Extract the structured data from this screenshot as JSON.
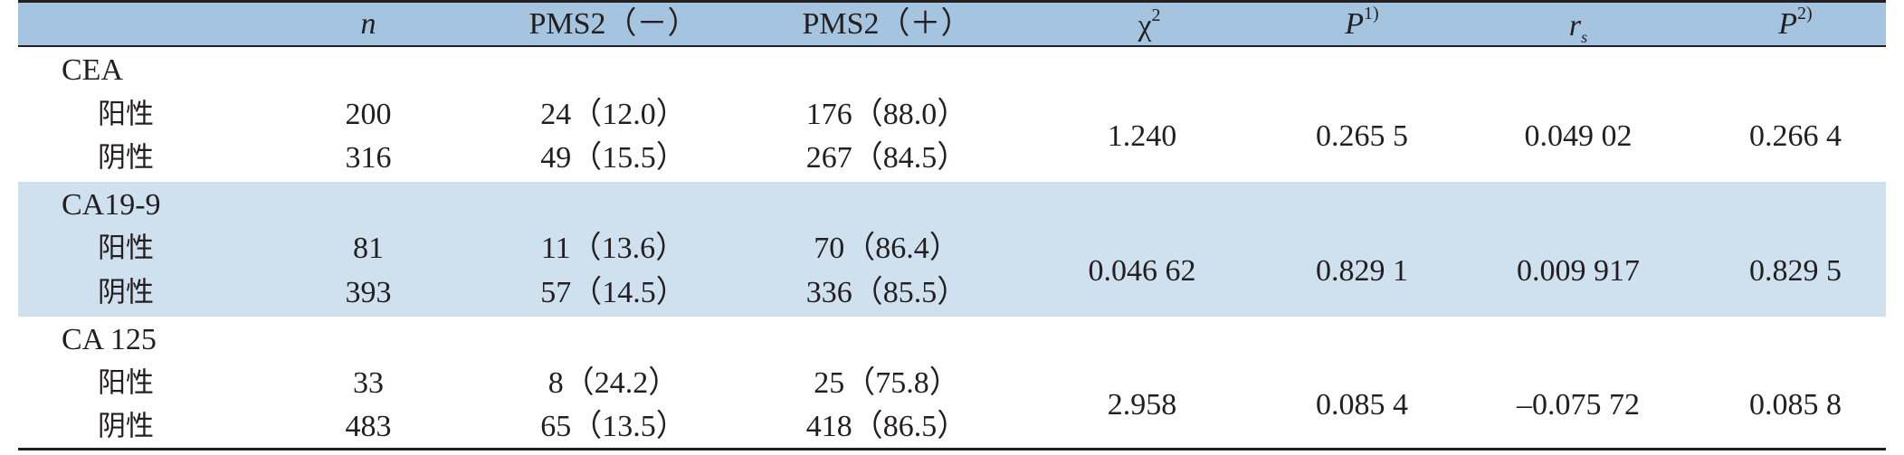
{
  "header": {
    "n": "n",
    "pms2_neg": "PMS2（－）",
    "pms2_pos": "PMS2（＋）",
    "chi": "χ",
    "chi_sup": "2",
    "p1": "P",
    "p1_sup": "1)",
    "rs": "r",
    "rs_sub": "s",
    "p2": "P",
    "p2_sup": "2)"
  },
  "groups": [
    {
      "marker": "CEA",
      "rows": [
        {
          "label": "阳性",
          "n": "200",
          "neg": "24（12.0）",
          "pos": "176（88.0）"
        },
        {
          "label": "阴性",
          "n": "316",
          "neg": "49（15.5）",
          "pos": "267（84.5）"
        }
      ],
      "chi2": "1.240",
      "p1": "0.265 5",
      "rs": "0.049 02",
      "p2": "0.266 4"
    },
    {
      "marker": "CA19-9",
      "rows": [
        {
          "label": "阳性",
          "n": "81",
          "neg": "11（13.6）",
          "pos": "70（86.4）"
        },
        {
          "label": "阴性",
          "n": "393",
          "neg": "57（14.5）",
          "pos": "336（85.5）"
        }
      ],
      "chi2": "0.046 62",
      "p1": "0.829 1",
      "rs": "0.009 917",
      "p2": "0.829 5"
    },
    {
      "marker": "CA 125",
      "rows": [
        {
          "label": "阳性",
          "n": "33",
          "neg": "8（24.2）",
          "pos": "25（75.8）"
        },
        {
          "label": "阴性",
          "n": "483",
          "neg": "65（13.5）",
          "pos": "418（86.5）"
        }
      ],
      "chi2": "2.958",
      "p1": "0.085 4",
      "rs": "–0.075 72",
      "p2": "0.085 8"
    }
  ],
  "colors": {
    "header_bg": "#a5c4df",
    "band_bg": "#cfe0ef",
    "rule": "#231f20"
  }
}
